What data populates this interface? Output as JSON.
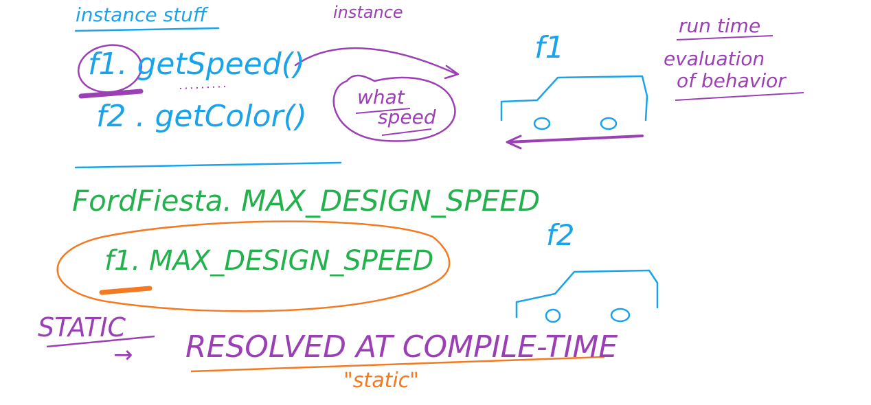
{
  "colors": {
    "blue": "#1aa3e8",
    "purple": "#9b3fb5",
    "green": "#22b14c",
    "orange": "#f47920",
    "canvas": "#ffffff"
  },
  "top": {
    "instance_stuff": "instance stuff",
    "instance": "instance",
    "f1_getspeed": "f1. getSpeed()",
    "f2_getcolor": "f2 . getColor()",
    "what": "what",
    "speed": "speed",
    "car1_label": "f1",
    "runtime": "run time",
    "evaluation": "evaluation",
    "of_behavior": "of behavior"
  },
  "bottom": {
    "fordfiesta_max": "FordFiesta. MAX_DESIGN_SPEED",
    "f1_max": "f1. MAX_DESIGN_SPEED",
    "car2_label": "f2",
    "static_word": "STATIC",
    "arrow": "→",
    "resolved": "RESOLVED AT COMPILE-TIME",
    "static_quote": "\"static\""
  }
}
